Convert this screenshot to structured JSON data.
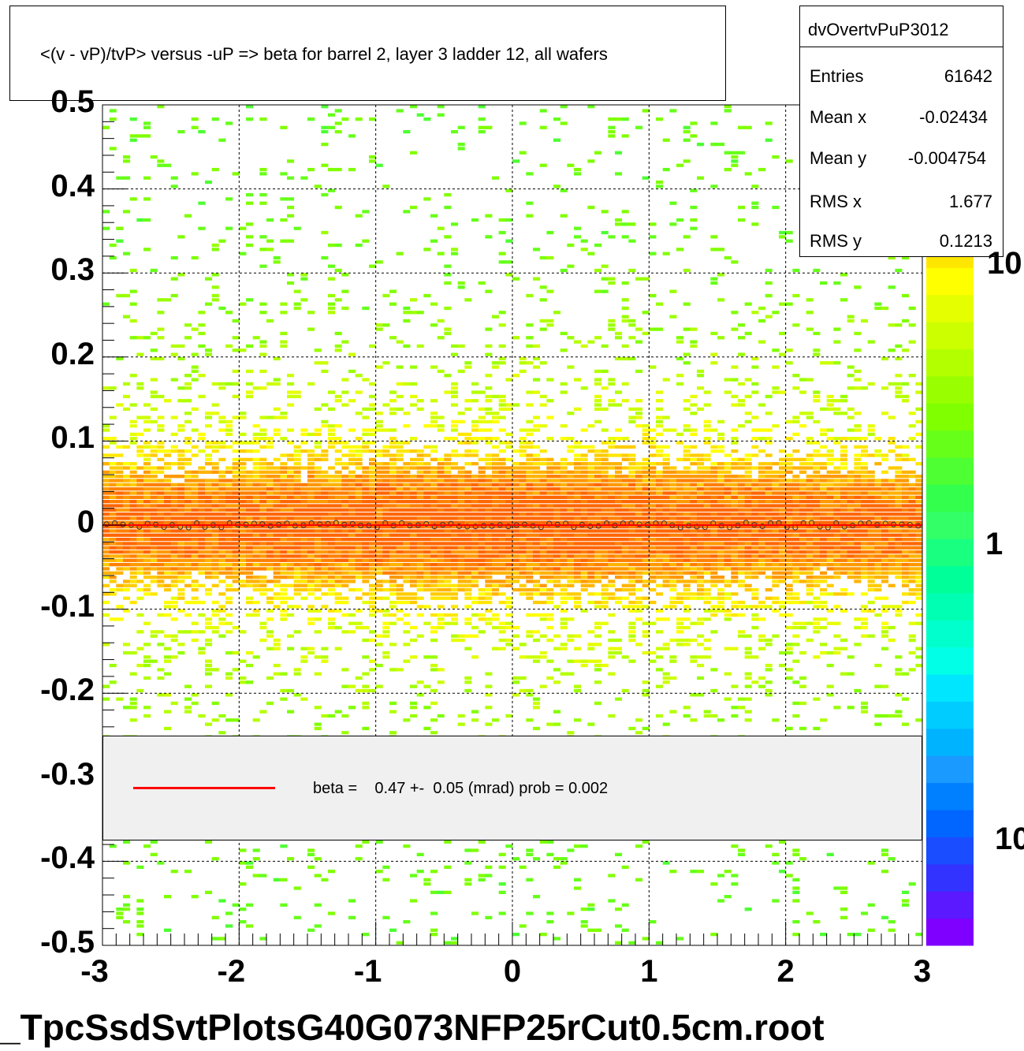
{
  "chart_data": {
    "type": "heatmap",
    "title": "<(v - vP)/tvP> versus  -uP => beta for barrel 2, layer 3 ladder 12, all wafers",
    "xlabel": "",
    "ylabel": "",
    "xlim": [
      -3,
      3
    ],
    "ylim": [
      -0.5,
      0.5
    ],
    "x_ticks": [
      "-3",
      "-2",
      "-1",
      "0",
      "1",
      "2",
      "3"
    ],
    "y_ticks": [
      "0.5",
      "0.4",
      "0.3",
      "0.2",
      "0.1",
      "0",
      "-0.1",
      "-0.2",
      "-0.3",
      "-0.4",
      "-0.5"
    ],
    "z_scale": "log",
    "z_ticks": [
      "10",
      "1",
      "10"
    ],
    "grid": true,
    "band_center_y": 0.0,
    "band_rms_y": 0.1213,
    "profile_points_y": 0.0,
    "fit_line": {
      "color": "#ff0000",
      "label": "beta =    0.47 +-  0.05 (mrad) prob = 0.002"
    }
  },
  "stats": {
    "name": "dvOvertvPuP3012",
    "entries_label": "Entries",
    "entries": "61642",
    "meanx_label": "Mean x",
    "meanx": "-0.02434",
    "meany_label": "Mean y",
    "meany": "-0.004754",
    "rmsx_label": "RMS x",
    "rmsx": "1.677",
    "rmsy_label": "RMS y",
    "rmsy": "0.1213"
  },
  "filename": "_TpcSsdSvtPlotsG40G073NFP25rCut0.5cm.root",
  "palette": [
    "#7f00ff",
    "#5a19ff",
    "#3333ff",
    "#1a4dff",
    "#0066ff",
    "#0080ff",
    "#1a99ff",
    "#00b3ff",
    "#00ccff",
    "#00e6ff",
    "#00ffe6",
    "#00ffcc",
    "#00ffb3",
    "#00ff99",
    "#19ff80",
    "#33ff66",
    "#33ff4d",
    "#4dff33",
    "#66ff1a",
    "#80ff00",
    "#99ff00",
    "#b3ff00",
    "#ccff00",
    "#e6ff00",
    "#ffff00",
    "#ffe600",
    "#ffcc00",
    "#ffb300",
    "#ff9900",
    "#ff8000",
    "#ff6600"
  ]
}
